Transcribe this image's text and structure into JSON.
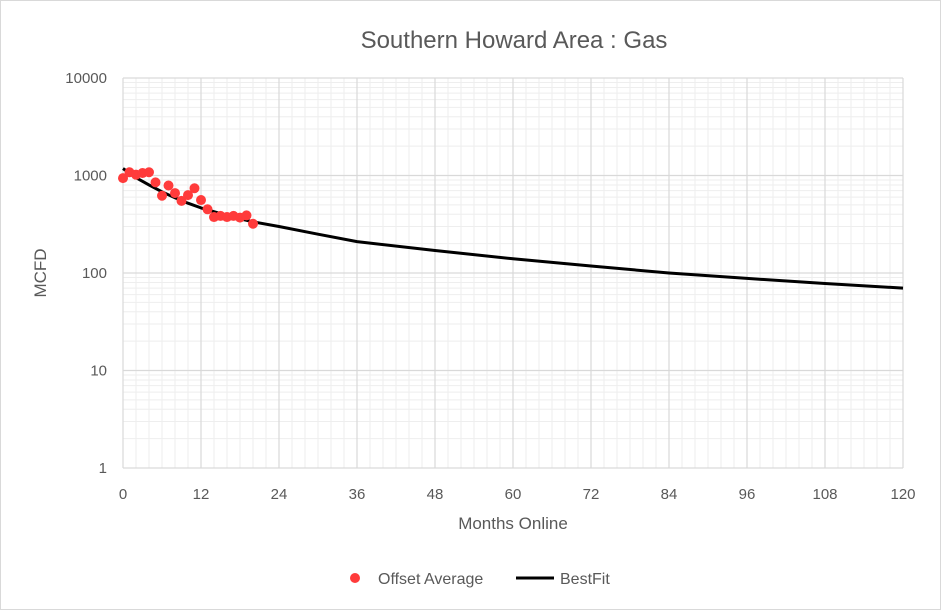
{
  "chart_data": {
    "type": "scatter",
    "title": "Southern Howard Area : Gas",
    "xlabel": "Months Online",
    "ylabel": "MCFD",
    "xlim": [
      0,
      120
    ],
    "ylim": [
      1,
      10000
    ],
    "yscale": "log",
    "x_ticks": [
      0,
      12,
      24,
      36,
      48,
      60,
      72,
      84,
      96,
      108,
      120
    ],
    "y_ticks": [
      1,
      10,
      100,
      1000,
      10000
    ],
    "y_tick_labels": [
      "1",
      "10",
      "100",
      "1000",
      "10000"
    ],
    "grid": true,
    "legend_position": "bottom",
    "colors": {
      "offset": "#ff3b3b",
      "bestfit": "#000000",
      "grid": "#d9d9d9"
    },
    "series": [
      {
        "name": "Offset Average",
        "kind": "scatter",
        "x": [
          0,
          1,
          2,
          3,
          4,
          5,
          6,
          7,
          8,
          9,
          10,
          11,
          12,
          13,
          14,
          15,
          16,
          17,
          18,
          19,
          20
        ],
        "y": [
          940,
          1080,
          1020,
          1060,
          1080,
          850,
          620,
          790,
          660,
          550,
          630,
          740,
          560,
          450,
          375,
          385,
          375,
          385,
          370,
          390,
          320
        ]
      },
      {
        "name": "BestFit",
        "kind": "line",
        "x": [
          0,
          2,
          4,
          6,
          8,
          10,
          12,
          14,
          16,
          18,
          20,
          24,
          30,
          36,
          48,
          60,
          72,
          84,
          96,
          108,
          120
        ],
        "y": [
          1180,
          950,
          800,
          680,
          590,
          520,
          465,
          425,
          390,
          360,
          335,
          300,
          250,
          210,
          170,
          140,
          118,
          100,
          88,
          78,
          70
        ]
      }
    ]
  }
}
